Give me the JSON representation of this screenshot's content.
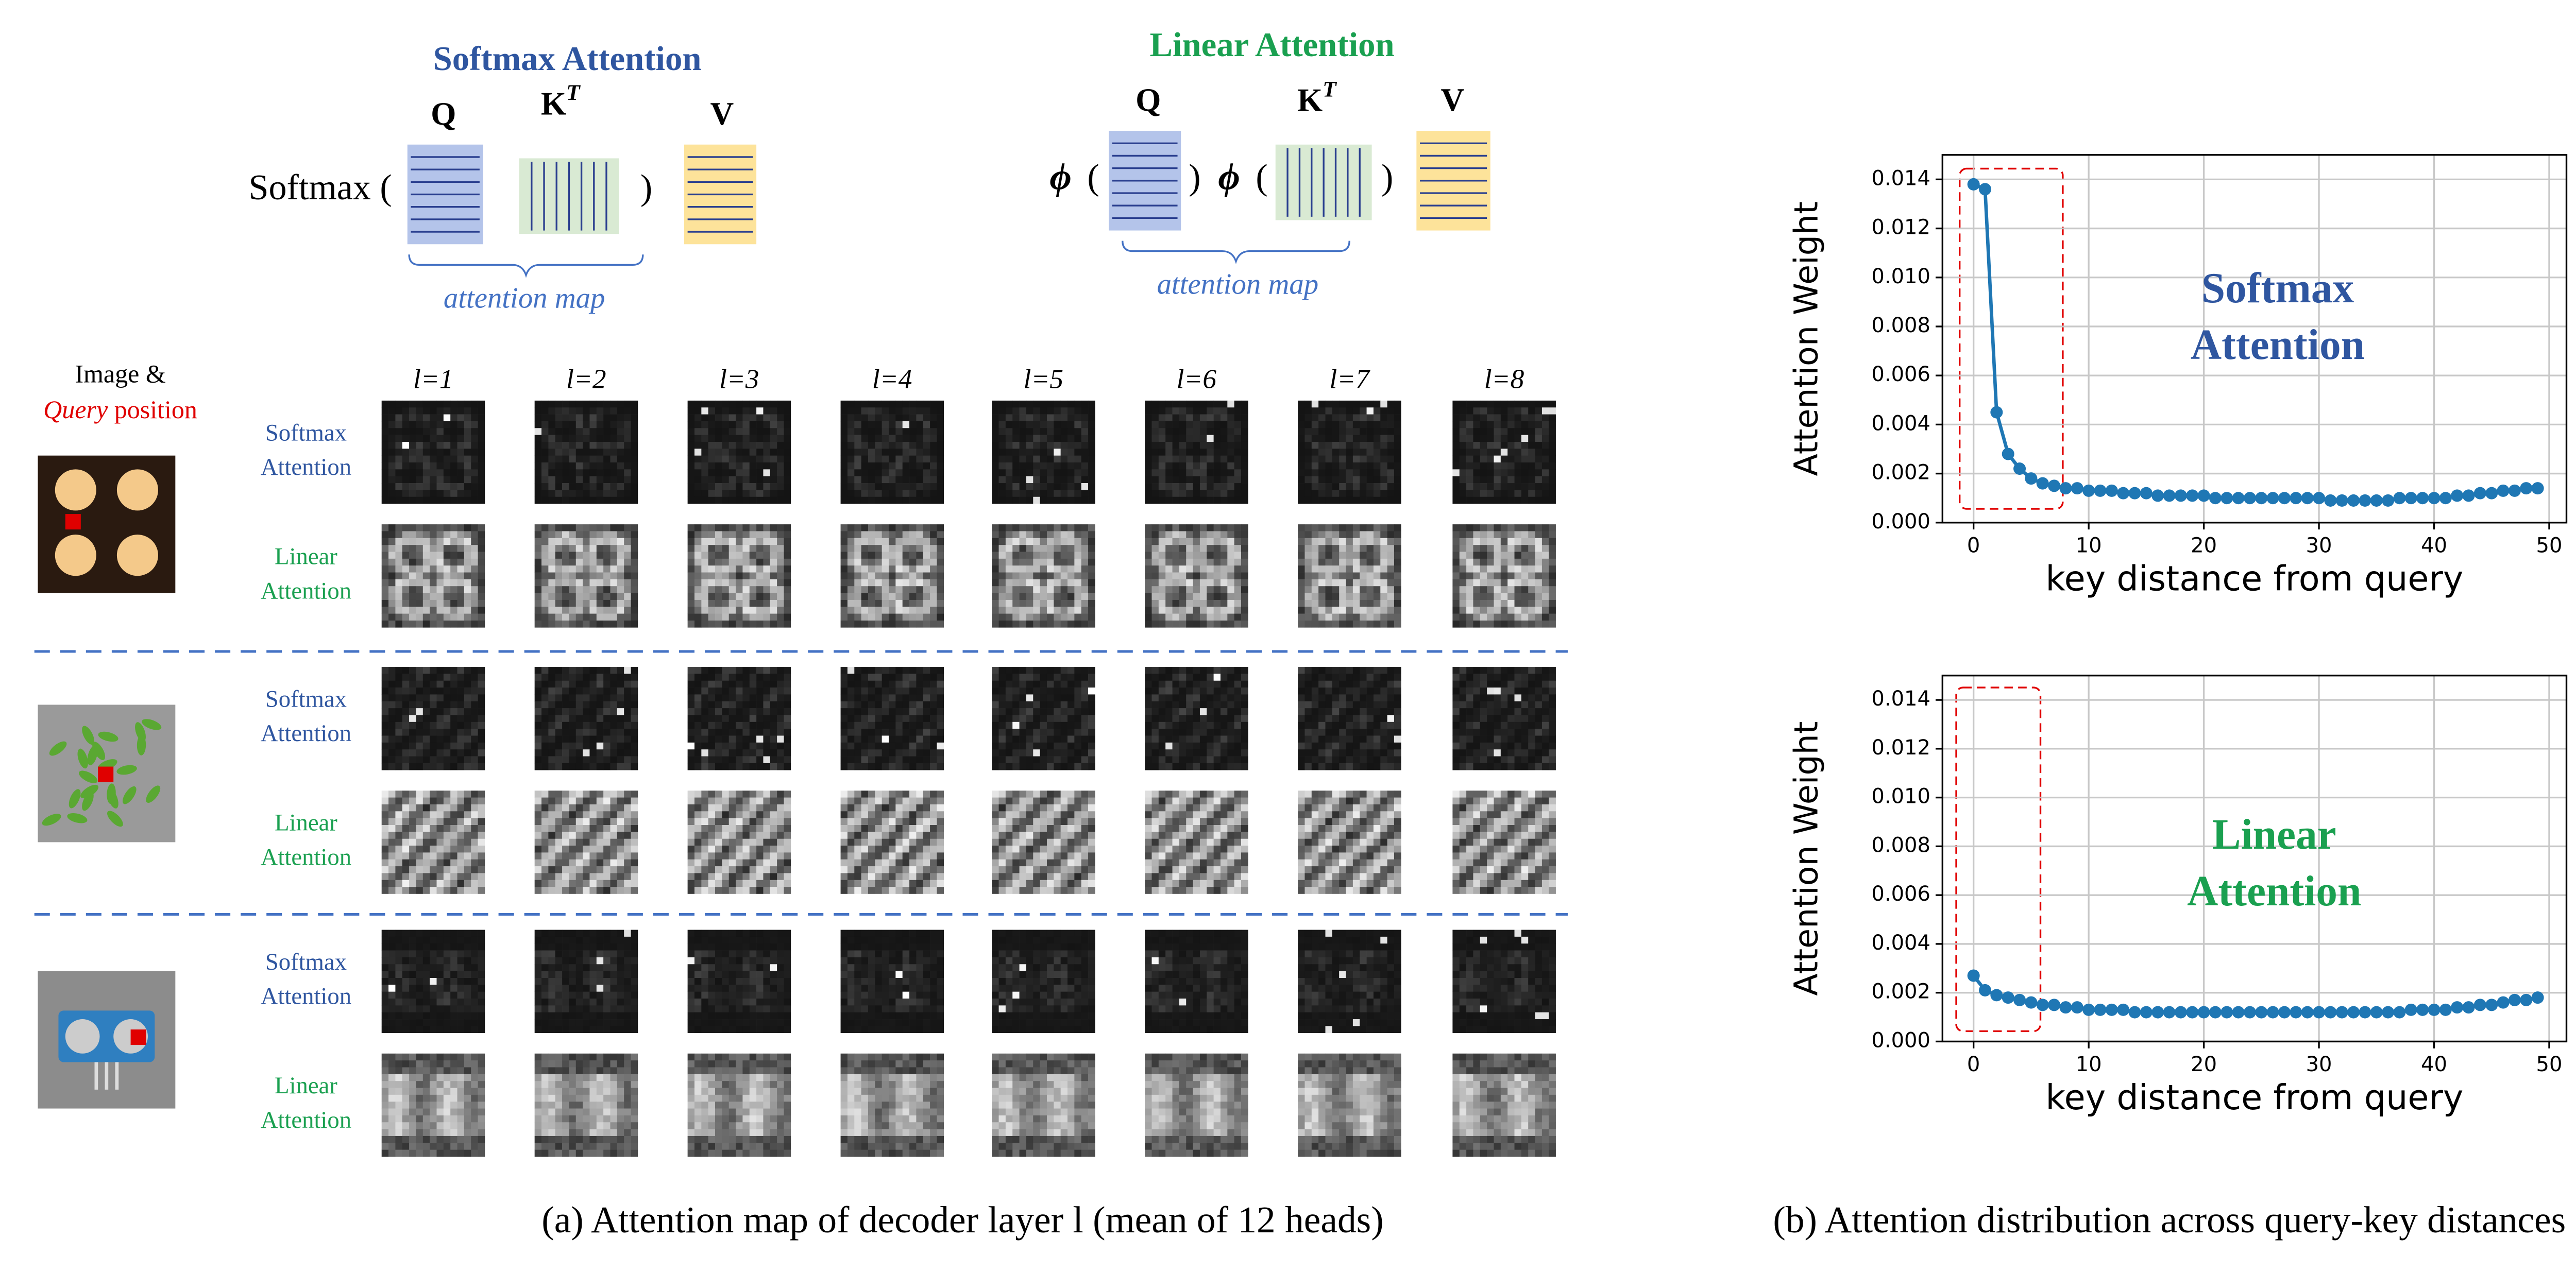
{
  "diagram": {
    "softmax": {
      "title": "Softmax Attention",
      "prefix": "Softmax (",
      "close": ")",
      "q": "Q",
      "k": "K",
      "sup": "T",
      "v": "V",
      "brace": "attention map"
    },
    "linear": {
      "title": "Linear Attention",
      "phi": "ϕ",
      "open": "(",
      "close": ")",
      "q": "Q",
      "k": "K",
      "sup": "T",
      "v": "V",
      "brace": "attention map"
    },
    "grid": {
      "header": "Image &",
      "query": "Query",
      "position": " position",
      "layers": [
        "l=1",
        "l=2",
        "l=3",
        "l=4",
        "l=5",
        "l=6",
        "l=7",
        "l=8"
      ],
      "row_labels": [
        [
          "Softmax",
          "Attention"
        ],
        [
          "Linear",
          "Attention"
        ]
      ]
    },
    "caption_a": "(a) Attention map of decoder layer l (mean of 12 heads)",
    "caption_b": "(b) Attention distribution across query-key distances"
  },
  "chart_data": [
    {
      "type": "line",
      "annotation_lines": [
        "Softmax",
        "Attention"
      ],
      "annotation_color": "#2f56a0",
      "xlabel": "key distance from query",
      "ylabel": "Attention Weight",
      "color": "#1f77b4",
      "grid": true,
      "x": [
        0,
        1,
        2,
        3,
        4,
        5,
        6,
        7,
        8,
        9,
        10,
        11,
        12,
        13,
        14,
        15,
        16,
        17,
        18,
        19,
        20,
        21,
        22,
        23,
        24,
        25,
        26,
        27,
        28,
        29,
        30,
        31,
        32,
        33,
        34,
        35,
        36,
        37,
        38,
        39,
        40,
        41,
        42,
        43,
        44,
        45,
        46,
        47,
        48,
        49
      ],
      "values": [
        0.0138,
        0.0136,
        0.0045,
        0.0028,
        0.0022,
        0.0018,
        0.0016,
        0.0015,
        0.0014,
        0.0014,
        0.0013,
        0.0013,
        0.0013,
        0.0012,
        0.0012,
        0.0012,
        0.0011,
        0.0011,
        0.0011,
        0.0011,
        0.0011,
        0.001,
        0.001,
        0.001,
        0.001,
        0.001,
        0.001,
        0.001,
        0.001,
        0.001,
        0.001,
        0.0009,
        0.0009,
        0.0009,
        0.0009,
        0.0009,
        0.0009,
        0.001,
        0.001,
        0.001,
        0.001,
        0.001,
        0.0011,
        0.0011,
        0.0012,
        0.0012,
        0.0013,
        0.0013,
        0.0014,
        0.0014
      ],
      "xlim": [
        -2.7,
        51.5
      ],
      "xticks": [
        0,
        10,
        20,
        30,
        40,
        50
      ],
      "ylim": [
        0,
        0.015
      ],
      "yticks": [
        {
          "value": 0,
          "label": "0.000"
        },
        {
          "value": 0.002,
          "label": "0.002"
        },
        {
          "value": 0.004,
          "label": "0.004"
        },
        {
          "value": 0.006,
          "label": "0.006"
        },
        {
          "value": 0.008,
          "label": "0.008"
        },
        {
          "value": 0.01,
          "label": "0.010"
        },
        {
          "value": 0.012,
          "label": "0.012"
        },
        {
          "value": 0.014,
          "label": "0.014"
        }
      ]
    },
    {
      "type": "line",
      "annotation_lines": [
        "Linear",
        "Attention"
      ],
      "annotation_color": "#1aa050",
      "xlabel": "key distance from query",
      "ylabel": "Attention Weight",
      "color": "#1f77b4",
      "grid": true,
      "x": [
        0,
        1,
        2,
        3,
        4,
        5,
        6,
        7,
        8,
        9,
        10,
        11,
        12,
        13,
        14,
        15,
        16,
        17,
        18,
        19,
        20,
        21,
        22,
        23,
        24,
        25,
        26,
        27,
        28,
        29,
        30,
        31,
        32,
        33,
        34,
        35,
        36,
        37,
        38,
        39,
        40,
        41,
        42,
        43,
        44,
        45,
        46,
        47,
        48,
        49
      ],
      "values": [
        0.0027,
        0.0021,
        0.0019,
        0.0018,
        0.0017,
        0.0016,
        0.0015,
        0.0015,
        0.0014,
        0.0014,
        0.0013,
        0.0013,
        0.0013,
        0.0013,
        0.0012,
        0.0012,
        0.0012,
        0.0012,
        0.0012,
        0.0012,
        0.0012,
        0.0012,
        0.0012,
        0.0012,
        0.0012,
        0.0012,
        0.0012,
        0.0012,
        0.0012,
        0.0012,
        0.0012,
        0.0012,
        0.0012,
        0.0012,
        0.0012,
        0.0012,
        0.0012,
        0.0012,
        0.0013,
        0.0013,
        0.0013,
        0.0013,
        0.0014,
        0.0014,
        0.0015,
        0.0015,
        0.0016,
        0.0017,
        0.0017,
        0.0018
      ],
      "xlim": [
        -2.7,
        51.5
      ],
      "xticks": [
        0,
        10,
        20,
        30,
        40,
        50
      ],
      "ylim": [
        0,
        0.015
      ],
      "yticks": [
        {
          "value": 0,
          "label": "0.000"
        },
        {
          "value": 0.002,
          "label": "0.002"
        },
        {
          "value": 0.004,
          "label": "0.004"
        },
        {
          "value": 0.006,
          "label": "0.006"
        },
        {
          "value": 0.008,
          "label": "0.008"
        },
        {
          "value": 0.01,
          "label": "0.010"
        },
        {
          "value": 0.012,
          "label": "0.012"
        },
        {
          "value": 0.014,
          "label": "0.014"
        }
      ]
    }
  ]
}
